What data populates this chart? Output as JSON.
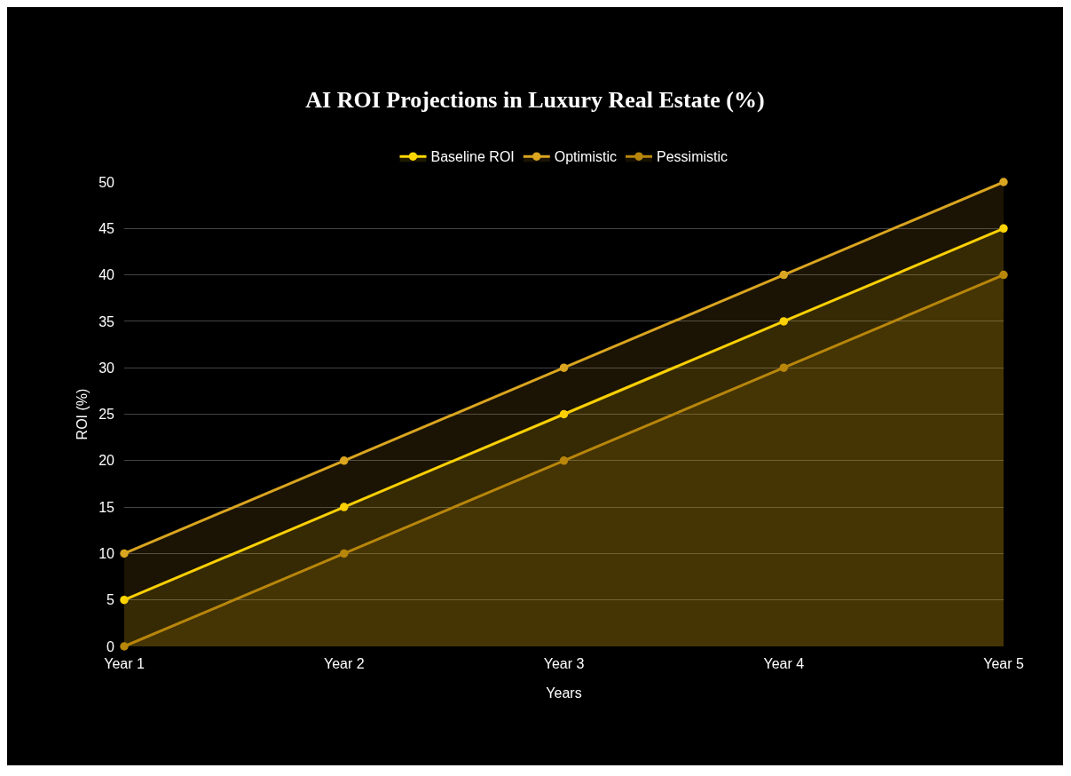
{
  "chart_data": {
    "type": "area",
    "title": "AI ROI Projections in Luxury Real Estate (%)",
    "xlabel": "Years",
    "ylabel": "ROI (%)",
    "categories": [
      "Year 1",
      "Year 2",
      "Year 3",
      "Year 4",
      "Year 5"
    ],
    "series": [
      {
        "name": "Baseline ROI",
        "color": "#ffd700",
        "values": [
          5,
          15,
          25,
          35,
          45
        ]
      },
      {
        "name": "Optimistic",
        "color": "#daa520",
        "values": [
          10,
          20,
          30,
          40,
          50
        ]
      },
      {
        "name": "Pessimistic",
        "color": "#b8860b",
        "values": [
          0,
          10,
          20,
          30,
          40
        ]
      }
    ],
    "ylim": [
      0,
      50
    ],
    "yticks": [
      0,
      5,
      10,
      15,
      20,
      25,
      30,
      35,
      40,
      45,
      50
    ],
    "grid": "y",
    "legend": "top",
    "marker": "circle"
  }
}
